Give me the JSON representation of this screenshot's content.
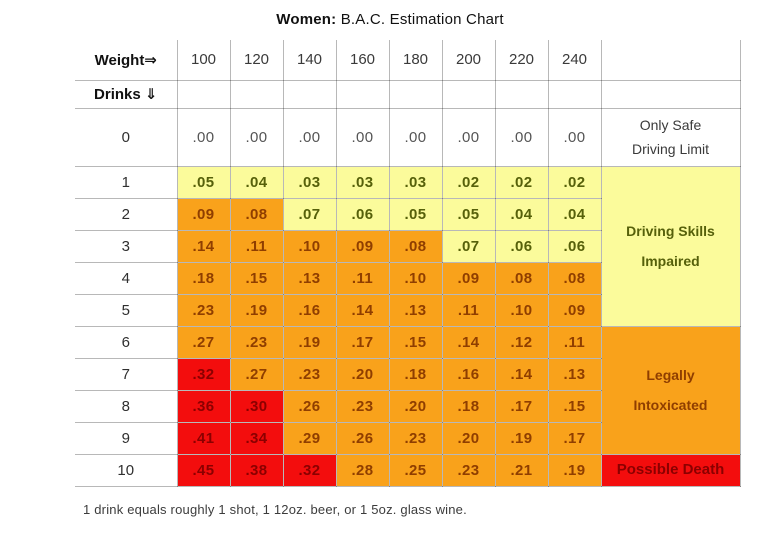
{
  "title": {
    "bold": "Women:",
    "rest": " B.A.C. Estimation Chart"
  },
  "header": {
    "weight_label": "Weight⇒",
    "drinks_label": "Drinks ⇓",
    "weights": [
      "100",
      "120",
      "140",
      "160",
      "180",
      "200",
      "220",
      "240"
    ]
  },
  "rows": [
    {
      "drinks": "0",
      "values": [
        ".00",
        ".00",
        ".00",
        ".00",
        ".00",
        ".00",
        ".00",
        ".00"
      ],
      "cells": "wwwwwwww",
      "label": {
        "zone": "safe",
        "rowspan": 1,
        "lines": [
          "Only Safe",
          "Driving Limit"
        ]
      }
    },
    {
      "drinks": "1",
      "values": [
        ".05",
        ".04",
        ".03",
        ".03",
        ".03",
        ".02",
        ".02",
        ".02"
      ],
      "cells": "yyyyyyyy",
      "label": {
        "zone": "impaired",
        "rowspan": 5,
        "lines": [
          "Driving Skills",
          "Impaired"
        ]
      }
    },
    {
      "drinks": "2",
      "values": [
        ".09",
        ".08",
        ".07",
        ".06",
        ".05",
        ".05",
        ".04",
        ".04"
      ],
      "cells": "ooyyyyyy"
    },
    {
      "drinks": "3",
      "values": [
        ".14",
        ".11",
        ".10",
        ".09",
        ".08",
        ".07",
        ".06",
        ".06"
      ],
      "cells": "oooooyyy"
    },
    {
      "drinks": "4",
      "values": [
        ".18",
        ".15",
        ".13",
        ".11",
        ".10",
        ".09",
        ".08",
        ".08"
      ],
      "cells": "oooooooo"
    },
    {
      "drinks": "5",
      "values": [
        ".23",
        ".19",
        ".16",
        ".14",
        ".13",
        ".11",
        ".10",
        ".09"
      ],
      "cells": "oooooooo"
    },
    {
      "drinks": "6",
      "values": [
        ".27",
        ".23",
        ".19",
        ".17",
        ".15",
        ".14",
        ".12",
        ".11"
      ],
      "cells": "oooooooo",
      "label": {
        "zone": "intoxicated",
        "rowspan": 4,
        "lines": [
          "Legally",
          "Intoxicated"
        ]
      }
    },
    {
      "drinks": "7",
      "values": [
        ".32",
        ".27",
        ".23",
        ".20",
        ".18",
        ".16",
        ".14",
        ".13"
      ],
      "cells": "rooooooo"
    },
    {
      "drinks": "8",
      "values": [
        ".36",
        ".30",
        ".26",
        ".23",
        ".20",
        ".18",
        ".17",
        ".15"
      ],
      "cells": "rroooooo"
    },
    {
      "drinks": "9",
      "values": [
        ".41",
        ".34",
        ".29",
        ".26",
        ".23",
        ".20",
        ".19",
        ".17"
      ],
      "cells": "rroooooo"
    },
    {
      "drinks": "10",
      "values": [
        ".45",
        ".38",
        ".32",
        ".28",
        ".25",
        ".23",
        ".21",
        ".19"
      ],
      "cells": "rrrooooo",
      "label": {
        "zone": "death",
        "rowspan": 1,
        "lines": [
          "Possible Death"
        ]
      }
    }
  ],
  "footer": "1 drink equals roughly 1 shot, 1 12oz. beer, or 1 5oz. glass wine.",
  "colors": {
    "yellow": "#FBFB9B",
    "orange": "#F9A21B",
    "red": "#F30D0D",
    "grid": "rgba(0,0,0,0.28)",
    "text_yellow": "#56600A",
    "text_orange": "#8F3E00",
    "text_red": "#8B0000"
  },
  "chart_data": {
    "type": "table",
    "title": "Women: B.A.C. Estimation Chart",
    "x_header": "Weight",
    "y_header": "Drinks",
    "weights": [
      100,
      120,
      140,
      160,
      180,
      200,
      220,
      240
    ],
    "drinks": [
      0,
      1,
      2,
      3,
      4,
      5,
      6,
      7,
      8,
      9,
      10
    ],
    "bac_values": [
      [
        0.0,
        0.0,
        0.0,
        0.0,
        0.0,
        0.0,
        0.0,
        0.0
      ],
      [
        0.05,
        0.04,
        0.03,
        0.03,
        0.03,
        0.02,
        0.02,
        0.02
      ],
      [
        0.09,
        0.08,
        0.07,
        0.06,
        0.05,
        0.05,
        0.04,
        0.04
      ],
      [
        0.14,
        0.11,
        0.1,
        0.09,
        0.08,
        0.07,
        0.06,
        0.06
      ],
      [
        0.18,
        0.15,
        0.13,
        0.11,
        0.1,
        0.09,
        0.08,
        0.08
      ],
      [
        0.23,
        0.19,
        0.16,
        0.14,
        0.13,
        0.11,
        0.1,
        0.09
      ],
      [
        0.27,
        0.23,
        0.19,
        0.17,
        0.15,
        0.14,
        0.12,
        0.11
      ],
      [
        0.32,
        0.27,
        0.23,
        0.2,
        0.18,
        0.16,
        0.14,
        0.13
      ],
      [
        0.36,
        0.3,
        0.26,
        0.23,
        0.2,
        0.18,
        0.17,
        0.15
      ],
      [
        0.41,
        0.34,
        0.29,
        0.26,
        0.23,
        0.2,
        0.19,
        0.17
      ],
      [
        0.45,
        0.38,
        0.32,
        0.28,
        0.25,
        0.23,
        0.21,
        0.19
      ]
    ],
    "zones": [
      {
        "label": "Only Safe Driving Limit",
        "color": "#FFFFFF"
      },
      {
        "label": "Driving Skills Impaired",
        "color": "#FBFB9B"
      },
      {
        "label": "Legally Intoxicated",
        "color": "#F9A21B"
      },
      {
        "label": "Possible Death",
        "color": "#F30D0D"
      }
    ],
    "note": "1 drink equals roughly 1 shot, 1 12oz. beer, or 1 5oz. glass wine."
  }
}
